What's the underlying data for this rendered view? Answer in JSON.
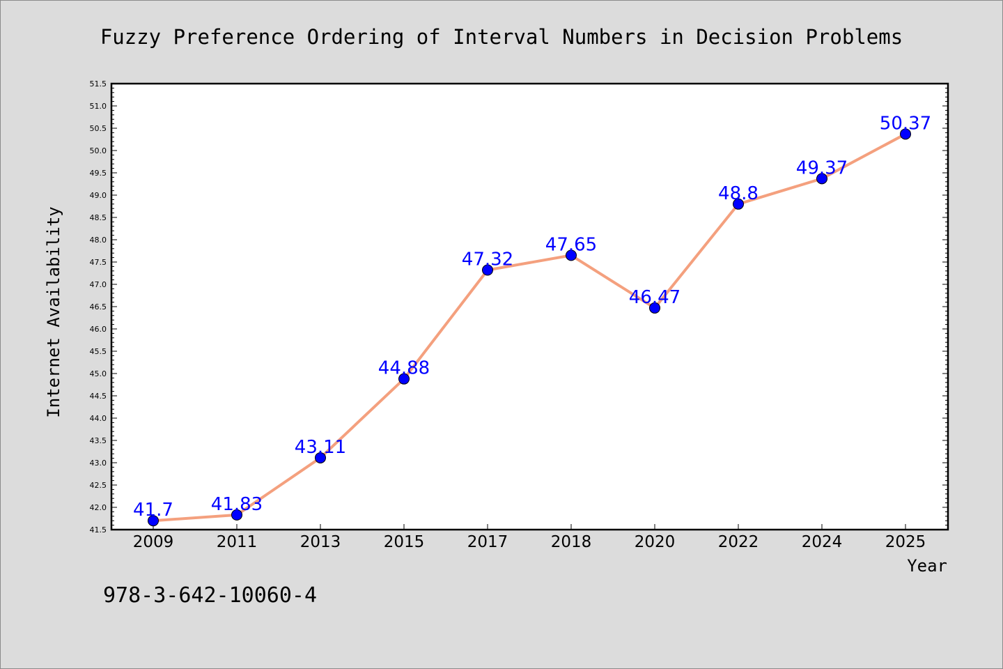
{
  "chart_data": {
    "type": "line",
    "title": "Fuzzy Preference Ordering of Interval Numbers in Decision Problems",
    "xlabel": "Year",
    "ylabel": "Internet Availability",
    "categories": [
      "2009",
      "2011",
      "2013",
      "2015",
      "2017",
      "2018",
      "2020",
      "2022",
      "2024",
      "2025"
    ],
    "series": [
      {
        "values": [
          41.7,
          41.83,
          43.11,
          44.88,
          47.32,
          47.65,
          46.47,
          48.8,
          49.37,
          50.37
        ],
        "data_labels": [
          "41.7",
          "41.83",
          "43.11",
          "44.88",
          "47.32",
          "47.65",
          "46.47",
          "48.8",
          "49.37",
          "50.37"
        ],
        "line_color": "#f4a07e",
        "marker_color": "#0000ff"
      }
    ],
    "ylim": [
      41.5,
      51.5
    ],
    "ytick_step": 0.5,
    "yticks": [
      "41.5",
      "42.0",
      "42.5",
      "43.0",
      "43.5",
      "44.0",
      "44.5",
      "45.0",
      "45.5",
      "46.0",
      "46.5",
      "47.0",
      "47.5",
      "48.0",
      "48.5",
      "49.0",
      "49.5",
      "50.0",
      "50.5",
      "51.0",
      "51.5"
    ],
    "grid": false,
    "legend": "none",
    "annotation": "978-3-642-10060-4"
  },
  "colors": {
    "background": "#dcdcdc",
    "plot_background": "#ffffff",
    "line": "#f4a07e",
    "marker": "#0000ff",
    "data_label": "#0000ff"
  }
}
